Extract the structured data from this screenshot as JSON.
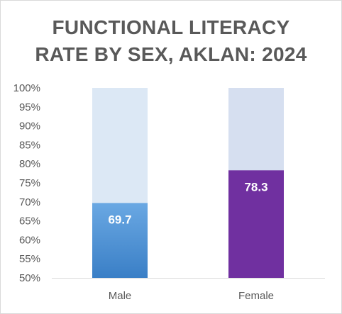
{
  "chart_data": {
    "type": "bar",
    "title_lines": [
      "FUNCTIONAL LITERACY",
      "RATE BY SEX, AKLAN: 2024"
    ],
    "categories": [
      "Male",
      "Female"
    ],
    "values": [
      69.7,
      78.3
    ],
    "data_labels": [
      "69.7",
      "78.3"
    ],
    "ylim": [
      50,
      100
    ],
    "yticks": [
      "50%",
      "55%",
      "60%",
      "65%",
      "70%",
      "75%",
      "80%",
      "85%",
      "90%",
      "95%",
      "100%"
    ],
    "grid": false,
    "legend": "none",
    "colors": {
      "male_bar_top": "#6aa8e3",
      "male_bar_bottom": "#3a7fc6",
      "male_background": "#dce8f5",
      "female_bar": "#7030a0",
      "female_background": "#d6dff0"
    }
  }
}
